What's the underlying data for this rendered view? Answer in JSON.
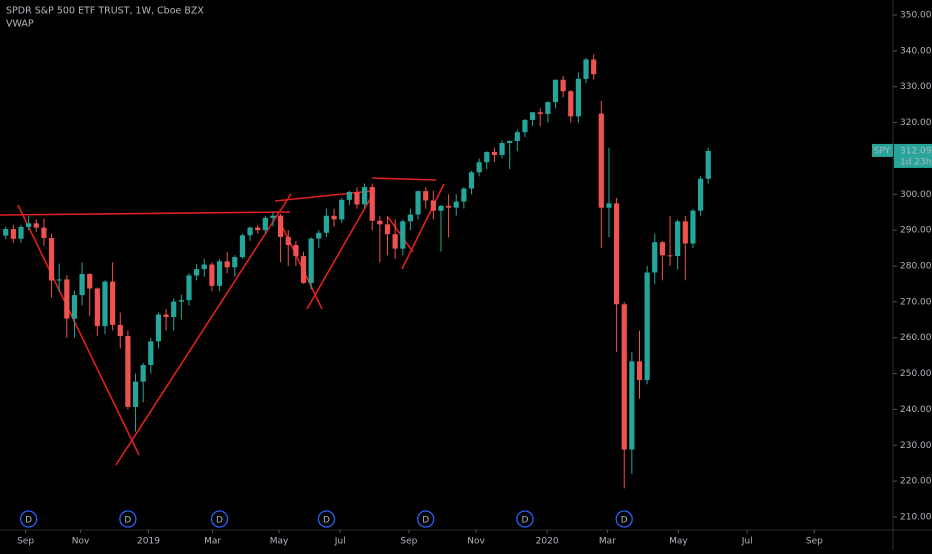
{
  "chart_data": {
    "type": "candlestick",
    "title": "SPDR S&P 500 ETF TRUST, 1W, Cboe BZX",
    "indicator": "VWAP",
    "symbol": "SPY",
    "countdown": "1d 23h",
    "up_color": "#26a69a",
    "down_color": "#ef5350",
    "x": [
      0,
      1,
      2,
      3,
      4,
      5,
      6,
      7,
      8,
      9,
      10,
      11,
      12,
      13,
      14,
      15,
      16,
      17,
      18,
      19,
      20,
      21,
      22,
      23,
      24,
      25,
      26,
      27,
      28,
      29,
      30,
      31,
      32,
      33,
      34,
      35,
      36,
      37,
      38,
      39,
      40,
      41,
      42,
      43,
      44,
      45,
      46,
      47,
      48,
      49,
      50,
      51,
      52,
      53,
      54,
      55,
      56,
      57,
      58,
      59,
      60,
      61,
      62,
      63,
      64,
      65,
      66,
      67,
      68,
      69,
      70,
      71,
      72,
      73,
      74,
      75,
      76,
      77,
      78,
      79,
      80,
      81,
      82,
      83,
      84,
      85,
      86,
      87,
      88,
      89,
      90,
      91,
      92
    ],
    "open": [
      288.5,
      290.3,
      287.6,
      290.9,
      291.9,
      290.7,
      287.8,
      275.95,
      276.25,
      265.33,
      271.89,
      277.76,
      273.73,
      263.25,
      275.65,
      263.57,
      260.47,
      240.7,
      247.75,
      252.39,
      258.98,
      266.46,
      265.78,
      270.06,
      270.47,
      277.37,
      279.14,
      280.42,
      274.46,
      281.31,
      279.65,
      282.48,
      288.57,
      290.72,
      290.02,
      293.41,
      294.03,
      288.1,
      285.84,
      282.78,
      275.27,
      287.65,
      289.26,
      294.0,
      293.0,
      298.46,
      300.65,
      297.17,
      302.01,
      292.62,
      291.62,
      288.85,
      284.85,
      292.45,
      294.35,
      300.87,
      298.28,
      295.4,
      296.77,
      296.28,
      297.97,
      301.6,
      306.14,
      308.94,
      311.79,
      310.96,
      314.31,
      314.87,
      317.32,
      320.73,
      322.86,
      322.41,
      325.71,
      331.95,
      328.77,
      321.73,
      332.2,
      337.6,
      322.5,
      296.26,
      297.46,
      269.32,
      228.8,
      253.42,
      248.19,
      278.2,
      286.64,
      282.97,
      282.79,
      292.44,
      286.28,
      295.44,
      304.32
    ],
    "high": [
      291,
      291.5,
      291.5,
      293.9,
      293,
      293.2,
      288.9,
      280.7,
      277.5,
      273.2,
      281,
      278,
      274,
      276,
      281,
      267,
      262,
      250,
      253,
      260,
      267,
      268,
      271,
      272,
      278,
      280.5,
      282,
      281,
      282,
      284,
      283,
      289,
      291,
      291.5,
      294,
      295,
      294.5,
      290,
      287,
      284,
      288,
      290,
      296,
      296,
      299,
      301,
      302,
      303,
      303,
      294,
      294,
      293,
      293,
      296,
      301,
      302,
      301,
      297,
      300,
      300,
      302,
      306.5,
      310,
      312,
      313,
      315,
      315,
      318,
      321,
      323,
      324,
      326,
      332,
      333,
      329,
      334,
      338,
      339,
      326,
      313,
      299,
      270,
      256,
      262,
      280,
      289,
      287,
      294,
      293,
      294,
      296,
      305,
      313
    ],
    "low": [
      287.5,
      286.5,
      286.5,
      290,
      289.5,
      285.6,
      271.2,
      273,
      259.9,
      260,
      269,
      266,
      260.5,
      261,
      262,
      257,
      240,
      233.8,
      242,
      250,
      257,
      262,
      262,
      265,
      269,
      276,
      277,
      273,
      273,
      278,
      277,
      282,
      287,
      289,
      289,
      291,
      281,
      280,
      280,
      275,
      273.5,
      285,
      288,
      291,
      292,
      297,
      296,
      296,
      290,
      281,
      283,
      282,
      283,
      290,
      293,
      296,
      293,
      284,
      288,
      294,
      296,
      300,
      305,
      307,
      309,
      310,
      307,
      312,
      316,
      319,
      319,
      320,
      324,
      327,
      320,
      320,
      331,
      332,
      285,
      288,
      256,
      218,
      222,
      243,
      247,
      275,
      276,
      280,
      279,
      276,
      285,
      294,
      303
    ],
    "close": [
      290.3,
      287.6,
      290.9,
      291.9,
      290.7,
      287.8,
      275.95,
      276.25,
      265.33,
      271.89,
      277.76,
      273.73,
      263.25,
      275.65,
      263.57,
      260.47,
      240.7,
      247.75,
      252.39,
      258.98,
      266.46,
      265.78,
      270.06,
      270.47,
      277.37,
      279.14,
      280.42,
      274.46,
      281.31,
      279.65,
      282.48,
      288.57,
      290.72,
      290.02,
      293.41,
      294.03,
      288.1,
      285.84,
      282.78,
      275.27,
      287.65,
      289.26,
      294.0,
      293.0,
      298.46,
      300.65,
      297.17,
      302.01,
      292.62,
      291.62,
      288.85,
      284.85,
      292.45,
      294.35,
      300.87,
      298.28,
      295.4,
      296.77,
      296.28,
      297.97,
      301.6,
      306.14,
      308.94,
      311.79,
      310.96,
      314.31,
      314.87,
      317.32,
      320.73,
      322.86,
      322.41,
      325.71,
      331.95,
      328.77,
      321.73,
      332.2,
      337.6,
      333.48,
      296.26,
      297.46,
      269.32,
      228.8,
      253.42,
      248.19,
      278.2,
      286.64,
      282.97,
      282.79,
      292.44,
      286.28,
      295.44,
      304.32,
      312.09
    ],
    "xlim": [
      -0.75,
      116.2
    ],
    "xticks": [
      {
        "value": 2.6,
        "label": "Sep"
      },
      {
        "value": 9.8,
        "label": "Nov"
      },
      {
        "value": 18.7,
        "label": "2019"
      },
      {
        "value": 27.1,
        "label": "Mar"
      },
      {
        "value": 35.8,
        "label": "May"
      },
      {
        "value": 43.8,
        "label": "Jul"
      },
      {
        "value": 52.8,
        "label": "Sep"
      },
      {
        "value": 61.6,
        "label": "Nov"
      },
      {
        "value": 70.9,
        "label": "2020"
      },
      {
        "value": 78.8,
        "label": "Mar"
      },
      {
        "value": 88.1,
        "label": "May"
      },
      {
        "value": 97.1,
        "label": "Jul"
      },
      {
        "value": 105.9,
        "label": "Sep"
      }
    ],
    "ylim": [
      350,
      210
    ],
    "yticks": [
      {
        "value": 350,
        "label": "350.00"
      },
      {
        "value": 340,
        "label": "340.00"
      },
      {
        "value": 330,
        "label": "330.00"
      },
      {
        "value": 320,
        "label": "320.00"
      },
      {
        "value": 310,
        "label": "310.00"
      },
      {
        "value": 300,
        "label": "300.00"
      },
      {
        "value": 290,
        "label": "290.00"
      },
      {
        "value": 280,
        "label": "280.00"
      },
      {
        "value": 270,
        "label": "270.00"
      },
      {
        "value": 260,
        "label": "260.00"
      },
      {
        "value": 250,
        "label": "250.00"
      },
      {
        "value": 240,
        "label": "240.00"
      },
      {
        "value": 230,
        "label": "230.00"
      },
      {
        "value": 220,
        "label": "220.00"
      },
      {
        "value": 210,
        "label": "210.00"
      }
    ],
    "dividends": {
      "label": "D",
      "x": [
        3,
        16,
        28,
        42,
        55,
        68,
        81
      ]
    }
  }
}
